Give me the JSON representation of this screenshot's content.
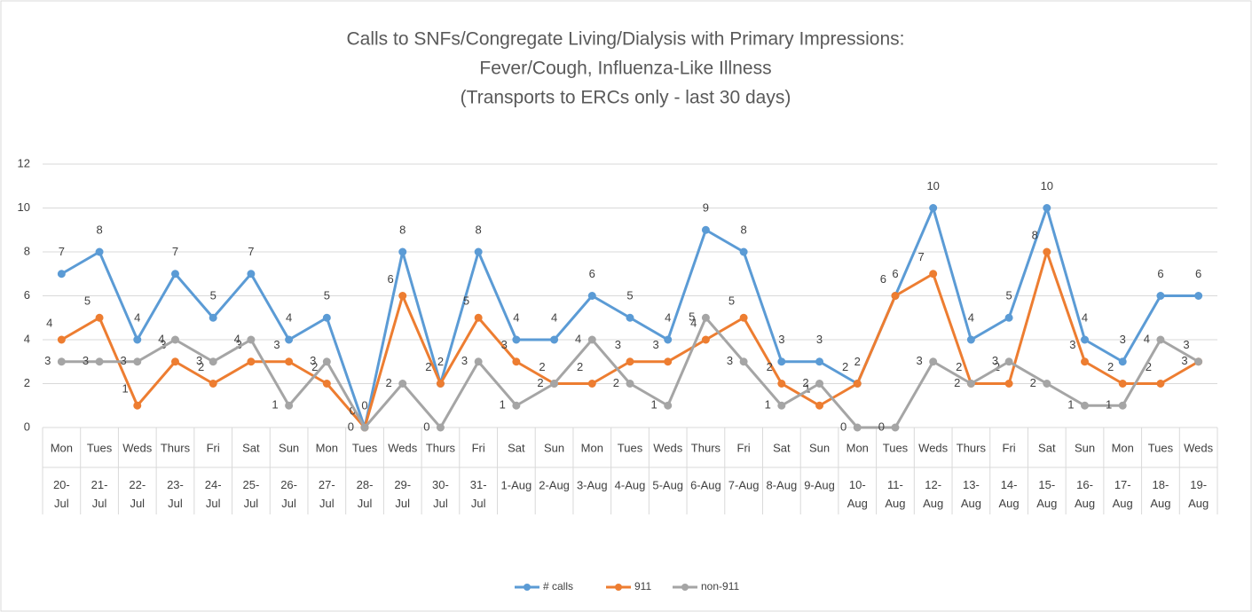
{
  "chart_data": {
    "type": "line",
    "title": [
      "Calls to SNFs/Congregate Living/Dialysis with Primary Impressions:",
      "Fever/Cough, Influenza-Like Illness",
      "(Transports to ERCs only - last 30 days)"
    ],
    "categories": [
      "Mon",
      "Tues",
      "Weds",
      "Thurs",
      "Fri",
      "Sat",
      "Sun",
      "Mon",
      "Tues",
      "Weds",
      "Thurs",
      "Fri",
      "Sat",
      "Sun",
      "Mon",
      "Tues",
      "Weds",
      "Thurs",
      "Fri",
      "Sat",
      "Sun",
      "Mon",
      "Tues",
      "Weds",
      "Thurs",
      "Fri",
      "Sat",
      "Sun",
      "Mon",
      "Tues",
      "Weds"
    ],
    "dates": [
      "20-Jul",
      "21-Jul",
      "22-Jul",
      "23-Jul",
      "24-Jul",
      "25-Jul",
      "26-Jul",
      "27-Jul",
      "28-Jul",
      "29-Jul",
      "30-Jul",
      "31-Jul",
      "1-Aug",
      "2-Aug",
      "3-Aug",
      "4-Aug",
      "5-Aug",
      "6-Aug",
      "7-Aug",
      "8-Aug",
      "9-Aug",
      "10-Aug",
      "11-Aug",
      "12-Aug",
      "13-Aug",
      "14-Aug",
      "15-Aug",
      "16-Aug",
      "17-Aug",
      "18-Aug",
      "19-Aug"
    ],
    "series": [
      {
        "name": "# calls",
        "color": "#5b9bd5",
        "values": [
          7,
          8,
          4,
          7,
          5,
          7,
          4,
          5,
          0,
          8,
          2,
          8,
          4,
          4,
          6,
          5,
          4,
          9,
          8,
          3,
          3,
          2,
          6,
          10,
          4,
          5,
          10,
          4,
          3,
          6,
          6
        ]
      },
      {
        "name": "911",
        "color": "#ed7d31",
        "values": [
          4,
          5,
          1,
          3,
          2,
          3,
          3,
          2,
          0,
          6,
          2,
          5,
          3,
          2,
          2,
          3,
          3,
          4,
          5,
          2,
          1,
          2,
          6,
          7,
          2,
          2,
          8,
          3,
          2,
          2,
          3
        ]
      },
      {
        "name": "non-911",
        "color": "#a5a5a5",
        "values": [
          3,
          3,
          3,
          4,
          3,
          4,
          1,
          3,
          0,
          2,
          0,
          3,
          1,
          2,
          4,
          2,
          1,
          5,
          3,
          1,
          2,
          0,
          0,
          3,
          2,
          3,
          2,
          1,
          1,
          4,
          3
        ]
      }
    ],
    "ylim": [
      0,
      12
    ],
    "yticks": [
      0,
      2,
      4,
      6,
      8,
      10,
      12
    ],
    "grid": true,
    "legend": "bottom"
  }
}
